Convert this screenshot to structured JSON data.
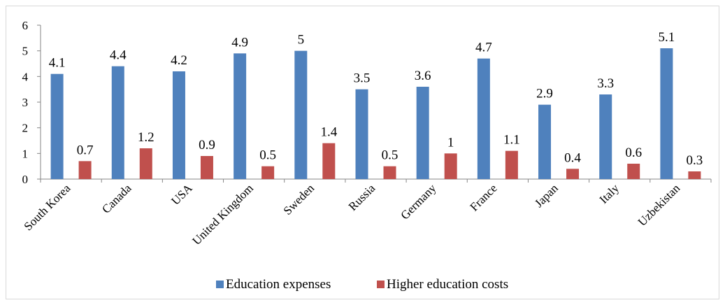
{
  "chart_data": {
    "type": "bar",
    "title": "",
    "xlabel": "",
    "ylabel": "",
    "ylim": [
      0,
      6
    ],
    "yticks": [
      0,
      1,
      2,
      3,
      4,
      5,
      6
    ],
    "grid": false,
    "legend_position": "bottom",
    "categories": [
      "South Korea",
      "Canada",
      "USA",
      "United Kingdom",
      "Sweden",
      "Russia",
      "Germany",
      "France",
      "Japan",
      "Italy",
      "Uzbekistan"
    ],
    "series": [
      {
        "name": "Education expenses",
        "color": "#4f81bd",
        "values": [
          4.1,
          4.4,
          4.2,
          4.9,
          5,
          3.5,
          3.6,
          4.7,
          2.9,
          3.3,
          5.1
        ],
        "labels": [
          "4.1",
          "4.4",
          "4.2",
          "4.9",
          "5",
          "3.5",
          "3.6",
          "4.7",
          "2.9",
          "3.3",
          "5.1"
        ]
      },
      {
        "name": "Higher education costs",
        "color": "#c0504d",
        "values": [
          0.7,
          1.2,
          0.9,
          0.5,
          1.4,
          0.5,
          1,
          1.1,
          0.4,
          0.6,
          0.3
        ],
        "labels": [
          "0.7",
          "1.2",
          "0.9",
          "0.5",
          "1.4",
          "0.5",
          "1",
          "1.1",
          "0.4",
          "0.6",
          "0.3"
        ]
      }
    ]
  }
}
